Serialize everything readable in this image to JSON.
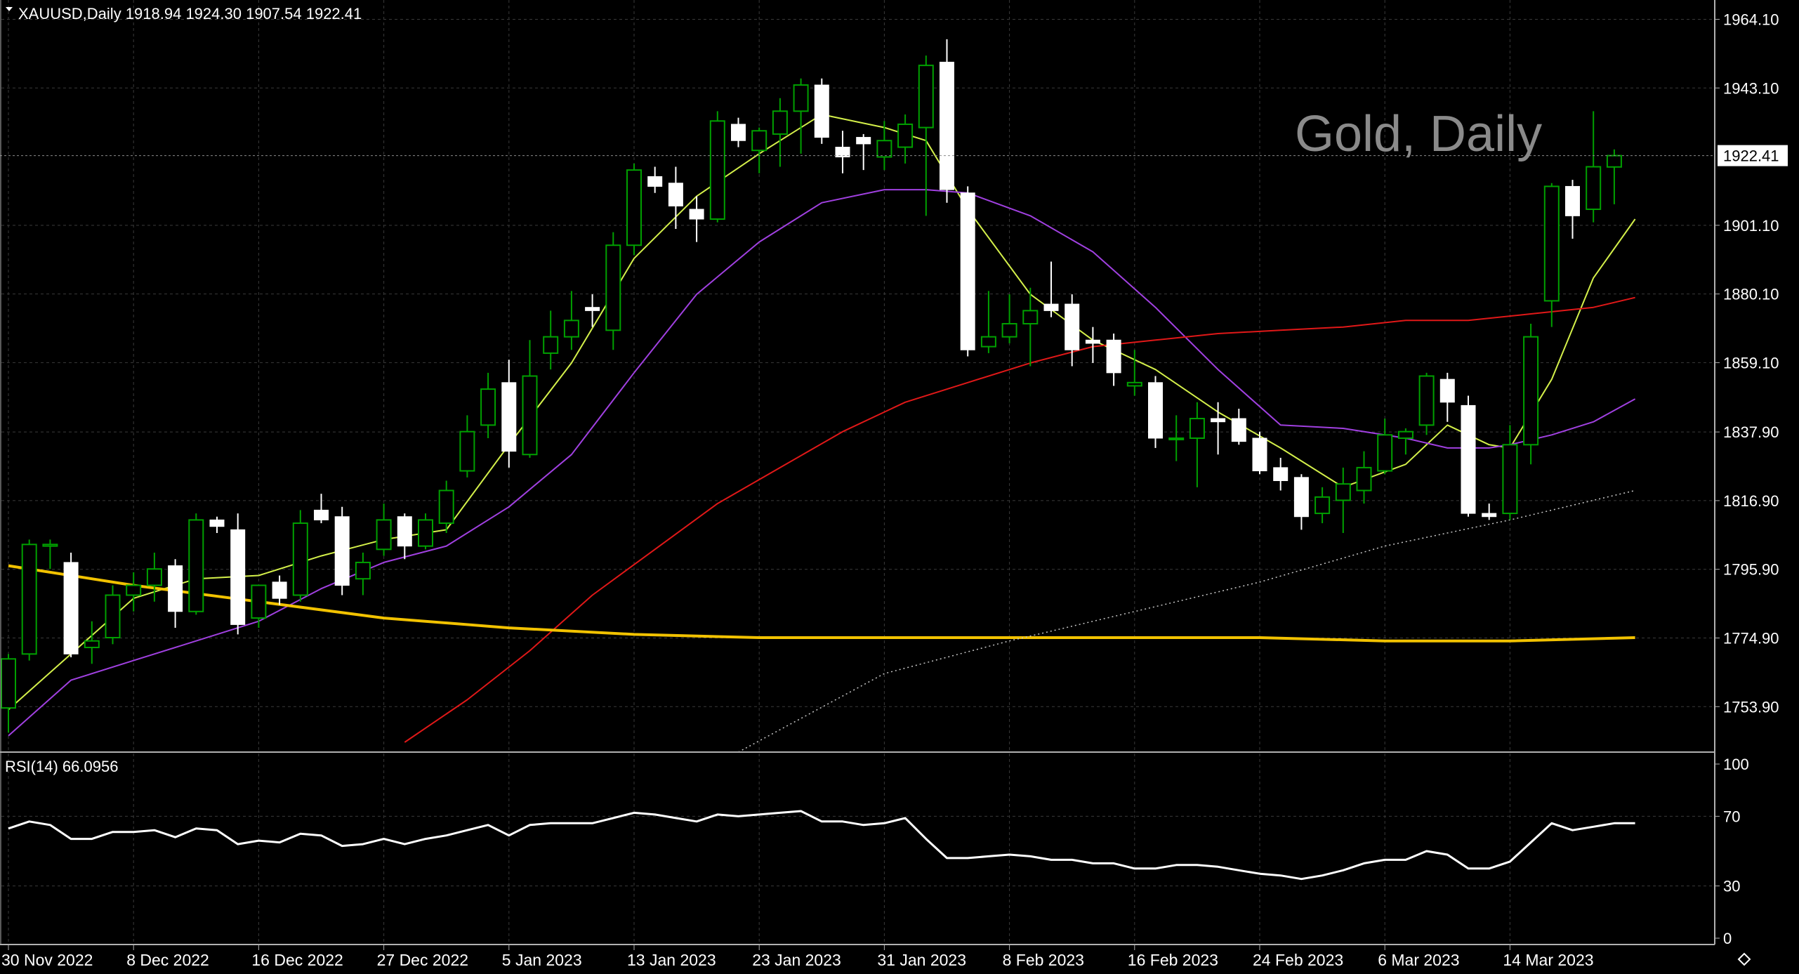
{
  "header": {
    "symbol_line": "XAUUSD,Daily  1918.94 1924.30 1907.54 1922.41"
  },
  "watermark": "Gold, Daily",
  "colors": {
    "background": "#000000",
    "grid": "#3a3a3a",
    "axis": "#b0b0b0",
    "bull_candle": "#00a000",
    "bear_candle": "#ffffff",
    "ma_fast": "#d4f04a",
    "ma_mid": "#a040e0",
    "ma_slow": "#e01818",
    "ma_long": "#f2c200",
    "ma_dotted": "#c8c8c8",
    "rsi_line": "#ffffff",
    "watermark": "#8a8a8a"
  },
  "chart_data": [
    {
      "type": "candlestick",
      "symbol": "XAUUSD",
      "timeframe": "Daily",
      "ylim": [
        1740.0,
        1970.0
      ],
      "y_ticks": [
        "1964.10",
        "1943.10",
        "1922.41",
        "1901.10",
        "1880.10",
        "1859.10",
        "1837.90",
        "1816.90",
        "1795.90",
        "1774.90",
        "1753.90"
      ],
      "y_tick_values": [
        1964.1,
        1943.1,
        1922.41,
        1901.1,
        1880.1,
        1859.1,
        1837.9,
        1816.9,
        1795.9,
        1774.9,
        1753.9
      ],
      "current_price": 1922.41,
      "current_price_label": "1922.41",
      "x_labels": [
        {
          "index": 0,
          "label": "30 Nov 2022"
        },
        {
          "index": 6,
          "label": "8 Dec 2022"
        },
        {
          "index": 12,
          "label": "16 Dec 2022"
        },
        {
          "index": 18,
          "label": "27 Dec 2022"
        },
        {
          "index": 24,
          "label": "5 Jan 2023"
        },
        {
          "index": 30,
          "label": "13 Jan 2023"
        },
        {
          "index": 36,
          "label": "23 Jan 2023"
        },
        {
          "index": 42,
          "label": "31 Jan 2023"
        },
        {
          "index": 48,
          "label": "8 Feb 2023"
        },
        {
          "index": 54,
          "label": "16 Feb 2023"
        },
        {
          "index": 60,
          "label": "24 Feb 2023"
        },
        {
          "index": 66,
          "label": "6 Mar 2023"
        },
        {
          "index": 72,
          "label": "14 Mar 2023"
        }
      ],
      "candles": [
        {
          "o": 1753.5,
          "h": 1770.0,
          "l": 1746.0,
          "c": 1768.5
        },
        {
          "o": 1770.0,
          "h": 1805.0,
          "l": 1768.0,
          "c": 1803.5
        },
        {
          "o": 1803.0,
          "h": 1805.0,
          "l": 1796.0,
          "c": 1803.5
        },
        {
          "o": 1798.0,
          "h": 1801.0,
          "l": 1769.0,
          "c": 1770.0
        },
        {
          "o": 1772.0,
          "h": 1780.0,
          "l": 1767.0,
          "c": 1774.0
        },
        {
          "o": 1775.0,
          "h": 1791.0,
          "l": 1773.0,
          "c": 1788.0
        },
        {
          "o": 1788.0,
          "h": 1795.0,
          "l": 1783.0,
          "c": 1791.0
        },
        {
          "o": 1791.0,
          "h": 1801.0,
          "l": 1786.0,
          "c": 1796.0
        },
        {
          "o": 1797.0,
          "h": 1799.0,
          "l": 1778.0,
          "c": 1783.0
        },
        {
          "o": 1783.0,
          "h": 1813.0,
          "l": 1782.0,
          "c": 1811.0
        },
        {
          "o": 1811.0,
          "h": 1812.0,
          "l": 1807.0,
          "c": 1809.0
        },
        {
          "o": 1808.0,
          "h": 1813.0,
          "l": 1776.0,
          "c": 1779.0
        },
        {
          "o": 1781.0,
          "h": 1791.0,
          "l": 1778.0,
          "c": 1791.0
        },
        {
          "o": 1792.0,
          "h": 1794.0,
          "l": 1785.0,
          "c": 1787.0
        },
        {
          "o": 1788.0,
          "h": 1814.0,
          "l": 1786.0,
          "c": 1810.0
        },
        {
          "o": 1814.0,
          "h": 1819.0,
          "l": 1810.0,
          "c": 1811.0
        },
        {
          "o": 1812.0,
          "h": 1815.0,
          "l": 1788.0,
          "c": 1791.0
        },
        {
          "o": 1793.0,
          "h": 1801.0,
          "l": 1788.0,
          "c": 1798.0
        },
        {
          "o": 1802.0,
          "h": 1816.0,
          "l": 1800.0,
          "c": 1811.0
        },
        {
          "o": 1812.0,
          "h": 1813.0,
          "l": 1799.0,
          "c": 1803.0
        },
        {
          "o": 1803.0,
          "h": 1813.0,
          "l": 1802.0,
          "c": 1811.0
        },
        {
          "o": 1810.0,
          "h": 1823.0,
          "l": 1807.0,
          "c": 1820.0
        },
        {
          "o": 1826.0,
          "h": 1843.0,
          "l": 1824.0,
          "c": 1838.0
        },
        {
          "o": 1840.0,
          "h": 1856.0,
          "l": 1836.0,
          "c": 1851.0
        },
        {
          "o": 1853.0,
          "h": 1860.0,
          "l": 1827.0,
          "c": 1832.0
        },
        {
          "o": 1831.0,
          "h": 1866.0,
          "l": 1830.0,
          "c": 1855.0
        },
        {
          "o": 1862.0,
          "h": 1875.0,
          "l": 1857.0,
          "c": 1867.0
        },
        {
          "o": 1867.0,
          "h": 1881.0,
          "l": 1863.0,
          "c": 1872.0
        },
        {
          "o": 1876.0,
          "h": 1880.0,
          "l": 1870.0,
          "c": 1875.0
        },
        {
          "o": 1869.0,
          "h": 1899.0,
          "l": 1863.0,
          "c": 1895.0
        },
        {
          "o": 1895.0,
          "h": 1920.0,
          "l": 1892.0,
          "c": 1918.0
        },
        {
          "o": 1916.0,
          "h": 1919.0,
          "l": 1911.0,
          "c": 1913.0
        },
        {
          "o": 1914.0,
          "h": 1919.0,
          "l": 1900.0,
          "c": 1907.0
        },
        {
          "o": 1906.0,
          "h": 1910.0,
          "l": 1896.0,
          "c": 1903.0
        },
        {
          "o": 1903.0,
          "h": 1936.0,
          "l": 1902.0,
          "c": 1933.0
        },
        {
          "o": 1932.0,
          "h": 1934.0,
          "l": 1925.0,
          "c": 1927.0
        },
        {
          "o": 1924.0,
          "h": 1931.0,
          "l": 1917.0,
          "c": 1930.0
        },
        {
          "o": 1929.0,
          "h": 1940.0,
          "l": 1919.0,
          "c": 1936.0
        },
        {
          "o": 1936.0,
          "h": 1946.0,
          "l": 1923.0,
          "c": 1944.0
        },
        {
          "o": 1944.0,
          "h": 1946.0,
          "l": 1926.0,
          "c": 1928.0
        },
        {
          "o": 1925.0,
          "h": 1930.0,
          "l": 1917.0,
          "c": 1922.0
        },
        {
          "o": 1928.0,
          "h": 1929.0,
          "l": 1918.0,
          "c": 1926.0
        },
        {
          "o": 1922.0,
          "h": 1933.0,
          "l": 1918.0,
          "c": 1927.0
        },
        {
          "o": 1925.0,
          "h": 1935.0,
          "l": 1920.0,
          "c": 1932.0
        },
        {
          "o": 1931.0,
          "h": 1953.0,
          "l": 1904.0,
          "c": 1950.0
        },
        {
          "o": 1951.0,
          "h": 1958.0,
          "l": 1908.0,
          "c": 1912.0
        },
        {
          "o": 1911.0,
          "h": 1913.0,
          "l": 1861.0,
          "c": 1863.0
        },
        {
          "o": 1864.0,
          "h": 1881.0,
          "l": 1862.0,
          "c": 1867.0
        },
        {
          "o": 1867.0,
          "h": 1880.0,
          "l": 1865.0,
          "c": 1871.0
        },
        {
          "o": 1871.0,
          "h": 1882.0,
          "l": 1858.0,
          "c": 1875.0
        },
        {
          "o": 1877.0,
          "h": 1890.0,
          "l": 1873.0,
          "c": 1875.0
        },
        {
          "o": 1877.0,
          "h": 1880.0,
          "l": 1858.0,
          "c": 1863.0
        },
        {
          "o": 1866.0,
          "h": 1870.0,
          "l": 1859.0,
          "c": 1865.0
        },
        {
          "o": 1866.0,
          "h": 1868.0,
          "l": 1852.0,
          "c": 1856.0
        },
        {
          "o": 1852.0,
          "h": 1863.0,
          "l": 1849.0,
          "c": 1853.0
        },
        {
          "o": 1853.0,
          "h": 1855.0,
          "l": 1833.0,
          "c": 1836.0
        },
        {
          "o": 1836.0,
          "h": 1843.0,
          "l": 1829.0,
          "c": 1836.0
        },
        {
          "o": 1836.0,
          "h": 1847.0,
          "l": 1821.0,
          "c": 1842.0
        },
        {
          "o": 1842.0,
          "h": 1847.0,
          "l": 1831.0,
          "c": 1841.0
        },
        {
          "o": 1842.0,
          "h": 1845.0,
          "l": 1834.0,
          "c": 1835.0
        },
        {
          "o": 1836.0,
          "h": 1838.0,
          "l": 1825.0,
          "c": 1826.0
        },
        {
          "o": 1827.0,
          "h": 1830.0,
          "l": 1820.0,
          "c": 1823.0
        },
        {
          "o": 1824.0,
          "h": 1825.0,
          "l": 1808.0,
          "c": 1812.0
        },
        {
          "o": 1813.0,
          "h": 1821.0,
          "l": 1810.0,
          "c": 1818.0
        },
        {
          "o": 1817.0,
          "h": 1827.0,
          "l": 1807.0,
          "c": 1822.0
        },
        {
          "o": 1820.0,
          "h": 1832.0,
          "l": 1816.0,
          "c": 1827.0
        },
        {
          "o": 1826.0,
          "h": 1842.0,
          "l": 1825.0,
          "c": 1837.0
        },
        {
          "o": 1836.0,
          "h": 1839.0,
          "l": 1831.0,
          "c": 1838.0
        },
        {
          "o": 1840.0,
          "h": 1856.0,
          "l": 1837.0,
          "c": 1855.0
        },
        {
          "o": 1854.0,
          "h": 1856.0,
          "l": 1841.0,
          "c": 1847.0
        },
        {
          "o": 1846.0,
          "h": 1849.0,
          "l": 1812.0,
          "c": 1813.0
        },
        {
          "o": 1813.0,
          "h": 1816.0,
          "l": 1811.0,
          "c": 1812.0
        },
        {
          "o": 1813.0,
          "h": 1840.0,
          "l": 1811.0,
          "c": 1834.0
        },
        {
          "o": 1834.0,
          "h": 1871.0,
          "l": 1828.0,
          "c": 1867.0
        },
        {
          "o": 1878.0,
          "h": 1914.0,
          "l": 1870.0,
          "c": 1913.0
        },
        {
          "o": 1913.0,
          "h": 1915.0,
          "l": 1897.0,
          "c": 1904.0
        },
        {
          "o": 1906.0,
          "h": 1936.0,
          "l": 1902.0,
          "c": 1919.0
        },
        {
          "o": 1918.94,
          "h": 1924.3,
          "l": 1907.54,
          "c": 1922.41
        }
      ],
      "moving_averages": [
        {
          "color_key": "ma_fast",
          "style": "solid",
          "points": [
            [
              0,
              1753.0
            ],
            [
              3,
              1770.0
            ],
            [
              6,
              1787.0
            ],
            [
              9,
              1793.0
            ],
            [
              12,
              1794.0
            ],
            [
              15,
              1800.0
            ],
            [
              18,
              1805.0
            ],
            [
              21,
              1808.0
            ],
            [
              24,
              1834.0
            ],
            [
              27,
              1859.0
            ],
            [
              30,
              1891.0
            ],
            [
              33,
              1910.0
            ],
            [
              36,
              1923.0
            ],
            [
              39,
              1935.0
            ],
            [
              42,
              1931.0
            ],
            [
              44,
              1927.0
            ],
            [
              46,
              1906.0
            ],
            [
              49,
              1880.0
            ],
            [
              52,
              1866.0
            ],
            [
              55,
              1857.0
            ],
            [
              58,
              1844.0
            ],
            [
              61,
              1833.0
            ],
            [
              64,
              1821.0
            ],
            [
              67,
              1828.0
            ],
            [
              69,
              1840.0
            ],
            [
              71,
              1834.0
            ],
            [
              72,
              1833.0
            ],
            [
              74,
              1854.0
            ],
            [
              76,
              1885.0
            ],
            [
              78,
              1903.0
            ]
          ]
        },
        {
          "color_key": "ma_mid",
          "style": "solid",
          "points": [
            [
              0,
              1745.0
            ],
            [
              3,
              1762.0
            ],
            [
              6,
              1768.0
            ],
            [
              9,
              1774.0
            ],
            [
              12,
              1780.0
            ],
            [
              15,
              1790.0
            ],
            [
              18,
              1798.0
            ],
            [
              21,
              1803.0
            ],
            [
              24,
              1815.0
            ],
            [
              27,
              1831.0
            ],
            [
              30,
              1856.0
            ],
            [
              33,
              1880.0
            ],
            [
              36,
              1896.0
            ],
            [
              39,
              1908.0
            ],
            [
              42,
              1912.0
            ],
            [
              44,
              1912.0
            ],
            [
              46,
              1911.0
            ],
            [
              49,
              1904.0
            ],
            [
              52,
              1893.0
            ],
            [
              55,
              1876.0
            ],
            [
              58,
              1857.0
            ],
            [
              61,
              1840.0
            ],
            [
              64,
              1839.0
            ],
            [
              67,
              1836.0
            ],
            [
              69,
              1833.0
            ],
            [
              71,
              1833.0
            ],
            [
              72,
              1834.0
            ],
            [
              74,
              1837.0
            ],
            [
              76,
              1841.0
            ],
            [
              78,
              1848.0
            ]
          ]
        },
        {
          "color_key": "ma_slow",
          "style": "solid",
          "points": [
            [
              19,
              1743.0
            ],
            [
              22,
              1756.0
            ],
            [
              25,
              1771.0
            ],
            [
              28,
              1788.0
            ],
            [
              31,
              1802.0
            ],
            [
              34,
              1816.0
            ],
            [
              37,
              1827.0
            ],
            [
              40,
              1838.0
            ],
            [
              43,
              1847.0
            ],
            [
              46,
              1853.0
            ],
            [
              49,
              1859.0
            ],
            [
              52,
              1864.0
            ],
            [
              55,
              1866.0
            ],
            [
              58,
              1868.0
            ],
            [
              61,
              1869.0
            ],
            [
              64,
              1870.0
            ],
            [
              67,
              1872.0
            ],
            [
              70,
              1872.0
            ],
            [
              73,
              1874.0
            ],
            [
              76,
              1876.0
            ],
            [
              78,
              1879.0
            ]
          ]
        },
        {
          "color_key": "ma_long",
          "style": "solid",
          "points": [
            [
              0,
              1797.0
            ],
            [
              6,
              1791.0
            ],
            [
              12,
              1786.0
            ],
            [
              18,
              1781.0
            ],
            [
              24,
              1778.0
            ],
            [
              30,
              1776.0
            ],
            [
              36,
              1775.0
            ],
            [
              42,
              1775.0
            ],
            [
              48,
              1775.0
            ],
            [
              54,
              1775.0
            ],
            [
              60,
              1775.0
            ],
            [
              66,
              1774.0
            ],
            [
              72,
              1774.0
            ],
            [
              78,
              1775.0
            ]
          ]
        },
        {
          "color_key": "ma_dotted",
          "style": "dotted",
          "points": [
            [
              35,
              1740.0
            ],
            [
              42,
              1764.0
            ],
            [
              48,
              1774.0
            ],
            [
              54,
              1783.0
            ],
            [
              60,
              1792.0
            ],
            [
              66,
              1803.0
            ],
            [
              72,
              1811.0
            ],
            [
              78,
              1820.0
            ]
          ]
        }
      ]
    },
    {
      "type": "line",
      "title": "RSI(14) 66.0956",
      "ylim": [
        0,
        100
      ],
      "y_ticks": [
        100,
        70,
        30,
        0
      ],
      "values": [
        63,
        67,
        65,
        57,
        57,
        61,
        61,
        62,
        58,
        63,
        62,
        54,
        56,
        55,
        60,
        59,
        53,
        54,
        57,
        54,
        57,
        59,
        62,
        65,
        59,
        65,
        66,
        66,
        66,
        69,
        72,
        71,
        69,
        67,
        71,
        70,
        71,
        72,
        73,
        67,
        67,
        65,
        66,
        69,
        57,
        46,
        46,
        47,
        48,
        47,
        45,
        45,
        43,
        43,
        40,
        40,
        42,
        42,
        41,
        39,
        37,
        36,
        34,
        36,
        39,
        43,
        45,
        45,
        50,
        48,
        40,
        40,
        44,
        55,
        66,
        62,
        64,
        66,
        66
      ]
    }
  ]
}
